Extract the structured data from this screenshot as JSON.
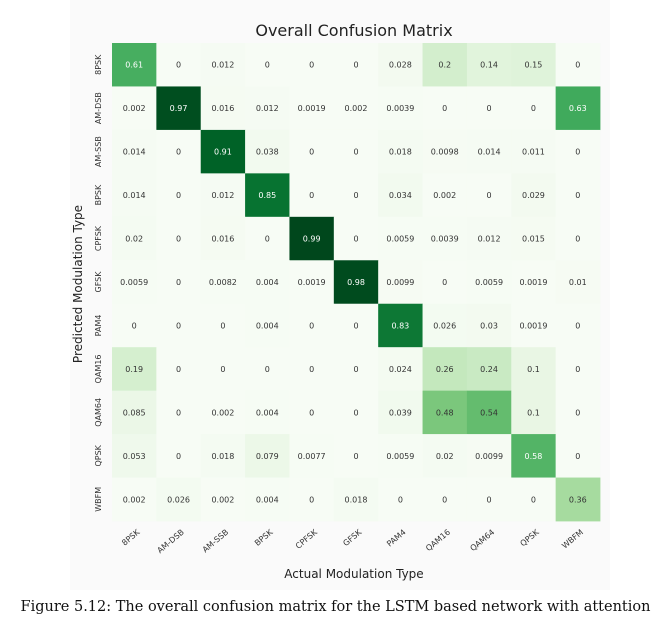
{
  "caption": "Figure 5.12: The overall confusion matrix for the LSTM based network with attention",
  "colors": {
    "low": "#f7fcf5",
    "high": "#00441b",
    "dark_text": "#333333",
    "light_text": "#ffffff"
  },
  "chart_data": {
    "type": "heatmap",
    "title": "Overall Confusion Matrix",
    "xlabel": "Actual Modulation Type",
    "ylabel": "Predicted Modulation Type",
    "x_categories": [
      "8PSK",
      "AM-DSB",
      "AM-SSB",
      "BPSK",
      "CPFSK",
      "GFSK",
      "PAM4",
      "QAM16",
      "QAM64",
      "QPSK",
      "WBFM"
    ],
    "y_categories": [
      "8PSK",
      "AM-DSB",
      "AM-SSB",
      "BPSK",
      "CPFSK",
      "GFSK",
      "PAM4",
      "QAM16",
      "QAM64",
      "QPSK",
      "WBFM"
    ],
    "values": [
      [
        "0.61",
        "0",
        "0.012",
        "0",
        "0",
        "0",
        "0.028",
        "0.2",
        "0.14",
        "0.15",
        "0"
      ],
      [
        "0.002",
        "0.97",
        "0.016",
        "0.012",
        "0.0019",
        "0.002",
        "0.0039",
        "0",
        "0",
        "0",
        "0.63"
      ],
      [
        "0.014",
        "0",
        "0.91",
        "0.038",
        "0",
        "0",
        "0.018",
        "0.0098",
        "0.014",
        "0.011",
        "0"
      ],
      [
        "0.014",
        "0",
        "0.012",
        "0.85",
        "0",
        "0",
        "0.034",
        "0.002",
        "0",
        "0.029",
        "0"
      ],
      [
        "0.02",
        "0",
        "0.016",
        "0",
        "0.99",
        "0",
        "0.0059",
        "0.0039",
        "0.012",
        "0.015",
        "0"
      ],
      [
        "0.0059",
        "0",
        "0.0082",
        "0.004",
        "0.0019",
        "0.98",
        "0.0099",
        "0",
        "0.0059",
        "0.0019",
        "0.01"
      ],
      [
        "0",
        "0",
        "0",
        "0.004",
        "0",
        "0",
        "0.83",
        "0.026",
        "0.03",
        "0.0019",
        "0"
      ],
      [
        "0.19",
        "0",
        "0",
        "0",
        "0",
        "0",
        "0.024",
        "0.26",
        "0.24",
        "0.1",
        "0"
      ],
      [
        "0.085",
        "0",
        "0.002",
        "0.004",
        "0",
        "0",
        "0.039",
        "0.48",
        "0.54",
        "0.1",
        "0"
      ],
      [
        "0.053",
        "0",
        "0.018",
        "0.079",
        "0.0077",
        "0",
        "0.0059",
        "0.02",
        "0.0099",
        "0.58",
        "0"
      ],
      [
        "0.002",
        "0.026",
        "0.002",
        "0.004",
        "0",
        "0.018",
        "0",
        "0",
        "0",
        "0",
        "0.36"
      ]
    ],
    "value_range": [
      0,
      1
    ],
    "colormap": "Greens"
  }
}
